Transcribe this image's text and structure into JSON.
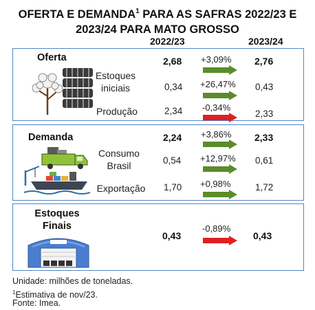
{
  "title": {
    "line1_pre": "OFERTA E DEMANDA",
    "line1_sup": "1",
    "line1_post": " PARA AS SAFRAS 2022/23 E",
    "line2": "2023/24 PARA MATO GROSSO"
  },
  "headers": {
    "col1": "2022/23",
    "col2": "2023/24"
  },
  "colors": {
    "border": "#4f86c6",
    "up": "#5b8c2a",
    "down": "#e02020"
  },
  "oferta": {
    "label": "Oferta",
    "icon": "cotton-bales-icon",
    "total": {
      "v1": "2,68",
      "pct": "+3,09%",
      "dir": "up",
      "v2": "2,76"
    },
    "rows": [
      {
        "label": "Estoques\niniciais",
        "v1": "0,34",
        "pct": "+26,47%",
        "dir": "up",
        "v2": "0,43"
      },
      {
        "label": "Produção",
        "v1": "2,34",
        "pct": "-0,34%",
        "dir": "down",
        "v2": "2,33"
      }
    ]
  },
  "demanda": {
    "label": "Demanda",
    "icon": "truck-ship-icon",
    "total": {
      "v1": "2,24",
      "pct": "+3,86%",
      "dir": "up",
      "v2": "2,33"
    },
    "rows": [
      {
        "label": "Consumo\nBrasil",
        "v1": "0,54",
        "pct": "+12,97%",
        "dir": "up",
        "v2": "0,61"
      },
      {
        "label": "Exportação",
        "v1": "1,70",
        "pct": "+0,98%",
        "dir": "up",
        "v2": "1,72"
      }
    ]
  },
  "estoques": {
    "label": "Estoques\nFinais",
    "icon": "warehouse-icon",
    "total": {
      "v1": "0,43",
      "pct": "-0,89%",
      "dir": "down",
      "v2": "0,43"
    }
  },
  "footer": {
    "line1": "Unidade: milhões de toneladas.",
    "line2_sup": "1",
    "line2": "Estimativa de nov/23.",
    "line3": "Fonte: Imea."
  }
}
